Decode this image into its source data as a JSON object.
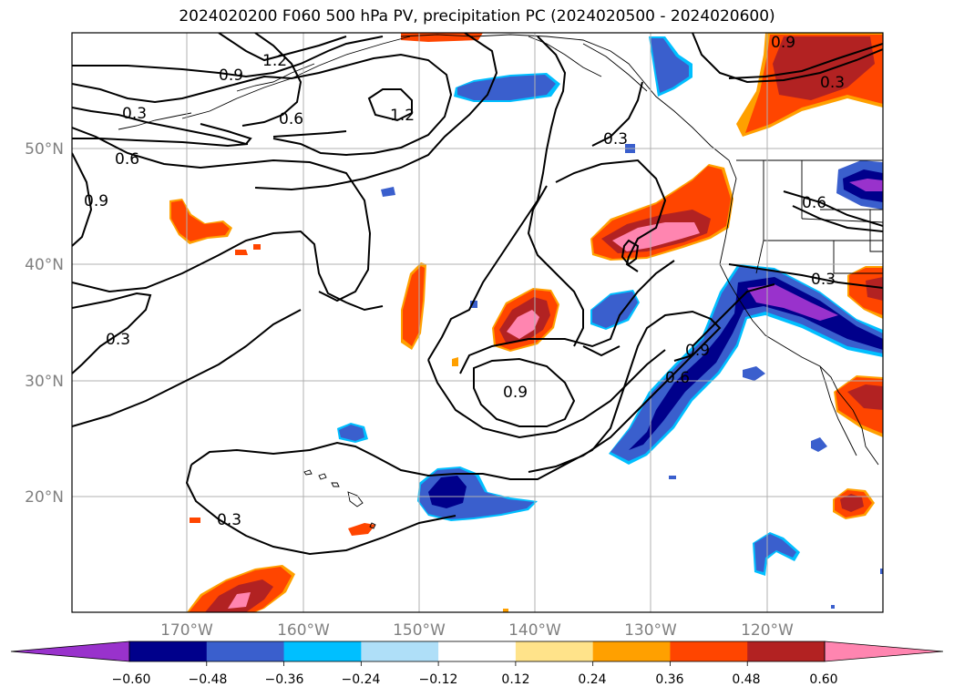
{
  "title": "2024020200 F060 500 hPa PV, precipitation PC (2024020500 - 2024020600)",
  "map": {
    "lat_labels": [
      "50°N",
      "40°N",
      "30°N",
      "20°N"
    ],
    "lon_labels": [
      "170°W",
      "160°W",
      "150°W",
      "140°W",
      "130°W",
      "120°W"
    ],
    "contour_labels": [
      "1.2",
      "0.9",
      "1.2",
      "0.3",
      "0.6",
      "0.6",
      "0.9",
      "0.3",
      "0.9",
      "0.9",
      "0.3",
      "0.6",
      "0.3",
      "0.3",
      "0.9",
      "0.6",
      "0.3"
    ]
  },
  "colorbar": {
    "ticks": [
      "−0.60",
      "−0.48",
      "−0.36",
      "−0.24",
      "−0.12",
      "0.12",
      "0.24",
      "0.36",
      "0.48",
      "0.60"
    ],
    "colors": [
      "#9932cc",
      "#00008b",
      "#3a5fcd",
      "#00bfff",
      "#afdff8",
      "#ffffff",
      "#ffe38a",
      "#ffa000",
      "#ff4500",
      "#b22222",
      "#ff85b0"
    ]
  }
}
